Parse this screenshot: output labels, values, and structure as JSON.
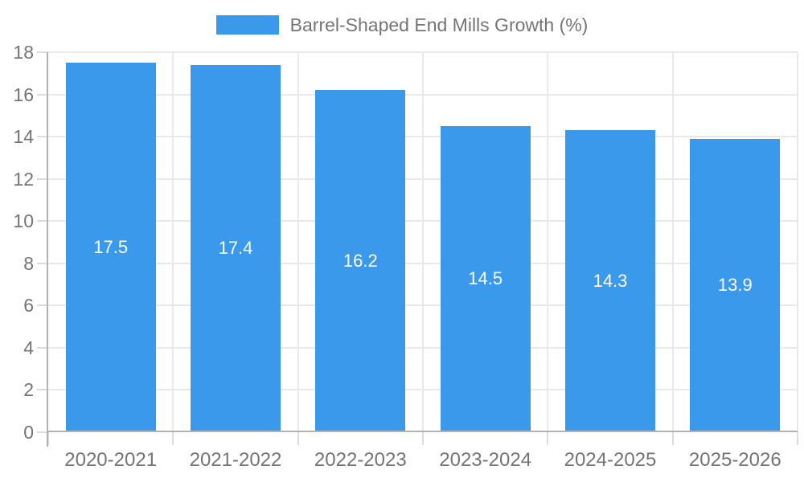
{
  "chart_data": {
    "type": "bar",
    "title": "",
    "legend": "Barrel-Shaped End Mills Growth (%)",
    "legend_position": "top",
    "categories": [
      "2020-2021",
      "2021-2022",
      "2022-2023",
      "2023-2024",
      "2024-2025",
      "2025-2026"
    ],
    "values": [
      17.5,
      17.4,
      16.2,
      14.5,
      14.3,
      13.9
    ],
    "xlabel": "",
    "ylabel": "",
    "ylim": [
      0,
      18
    ],
    "yticks": [
      0,
      2,
      4,
      6,
      8,
      10,
      12,
      14,
      16,
      18
    ],
    "grid": true,
    "value_labels_inside_bars": true
  },
  "colors": {
    "bar": "#3B99EC",
    "axis_line": "#b3b3b3",
    "gridline": "#e9e9e9",
    "tick": "#dcdcdc",
    "axis_text": "#757575",
    "value_text": "#ffffff",
    "background": "#ffffff"
  }
}
